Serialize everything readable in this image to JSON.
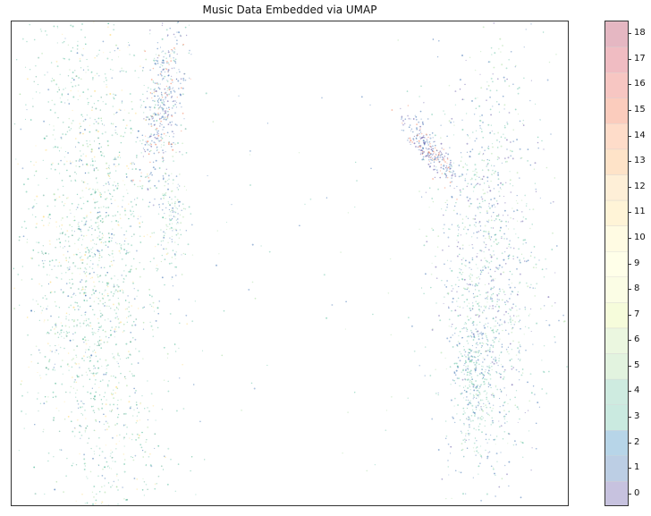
{
  "chart_data": {
    "type": "scatter",
    "title": "Music Data Embedded via UMAP",
    "xlabel": "",
    "ylabel": "",
    "x_ticks_visible": false,
    "y_ticks_visible": false,
    "colorbar": {
      "ticks": [
        "0",
        "1",
        "2",
        "3",
        "4",
        "5",
        "6",
        "7",
        "8",
        "9",
        "10",
        "11",
        "12",
        "13",
        "14",
        "15",
        "16",
        "17",
        "18"
      ],
      "colormap": "Spectral_r",
      "alpha": 0.35
    },
    "colors": {
      "dominant_point": "#66c2a5",
      "secondary_point": "#3f73b3",
      "accent_orange": "#f46d43",
      "accent_yellow": "#fee08b"
    },
    "series_regions": [
      {
        "name": "left-large-cluster",
        "center": [
          -3.6,
          0.05
        ],
        "spread": [
          0.62,
          2.2
        ],
        "density": 0.43
      },
      {
        "name": "left-upper-cluster",
        "center": [
          -2.3,
          2.35
        ],
        "spread": [
          0.18,
          0.62
        ],
        "density": 0.08
      },
      {
        "name": "left-tail",
        "center": [
          -2.1,
          0.75
        ],
        "spread": [
          0.12,
          0.45
        ],
        "density": 0.03
      },
      {
        "name": "right-upper-cluster",
        "center": [
          2.45,
          1.72
        ],
        "spread": [
          0.22,
          0.35
        ],
        "density": 0.05
      },
      {
        "name": "right-large-cluster",
        "center": [
          3.55,
          -0.15
        ],
        "spread": [
          0.48,
          1.65
        ],
        "density": 0.24
      },
      {
        "name": "right-lower-tail",
        "center": [
          3.3,
          -1.65
        ],
        "spread": [
          0.2,
          0.52
        ],
        "density": 0.06
      },
      {
        "name": "sparse-outliers",
        "center": [
          0.0,
          0.0
        ],
        "spread": [
          3.8,
          3.1
        ],
        "density": 0.02
      }
    ],
    "xlim": [
      -5.0,
      5.0
    ],
    "ylim": [
      -3.6,
      3.6
    ],
    "legend": "colorbar-right"
  }
}
